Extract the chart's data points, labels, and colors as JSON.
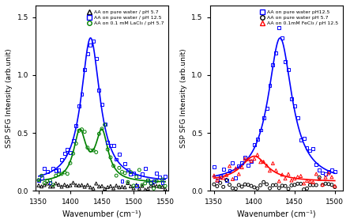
{
  "left": {
    "legend": [
      {
        "label": "AA on pure water / pH 5.7",
        "color": "black",
        "marker": "^",
        "markersize": 4
      },
      {
        "label": "AA on pure water / pH 12.5",
        "color": "blue",
        "marker": "s",
        "markersize": 4
      },
      {
        "label": "AA on 0.1 mM LaCl₃ / pH 5.7",
        "color": "green",
        "marker": "o",
        "markersize": 4
      }
    ],
    "xlabel": "Wavenumber (cm⁻¹)",
    "ylabel": "SSP SFG Intensity (arb.unit)",
    "xlim": [
      1345,
      1555
    ],
    "ylim": [
      0.0,
      1.6
    ],
    "yticks": [
      0.0,
      0.5,
      1.0,
      1.5
    ],
    "xticks": [
      1350,
      1400,
      1450,
      1500,
      1550
    ]
  },
  "right": {
    "legend": [
      {
        "label": "AA on pure water pH12.5",
        "color": "blue",
        "marker": "s",
        "markersize": 4
      },
      {
        "label": "AA on pure water pH 5.7",
        "color": "black",
        "marker": "o",
        "markersize": 4
      },
      {
        "label": "AA on 0.1mM FeCl₃ / pH 12.5",
        "color": "red",
        "marker": "^",
        "markersize": 4
      }
    ],
    "xlabel": "Wavenumber (cm⁻¹)",
    "ylabel": "SSP SFG Intensity (arb.unit)",
    "xlim": [
      1345,
      1510
    ],
    "ylim": [
      0.0,
      1.6
    ],
    "yticks": [
      0.0,
      0.5,
      1.0,
      1.5
    ],
    "xticks": [
      1350,
      1400,
      1450,
      1500
    ]
  },
  "figsize": [
    4.43,
    2.82
  ],
  "dpi": 100
}
